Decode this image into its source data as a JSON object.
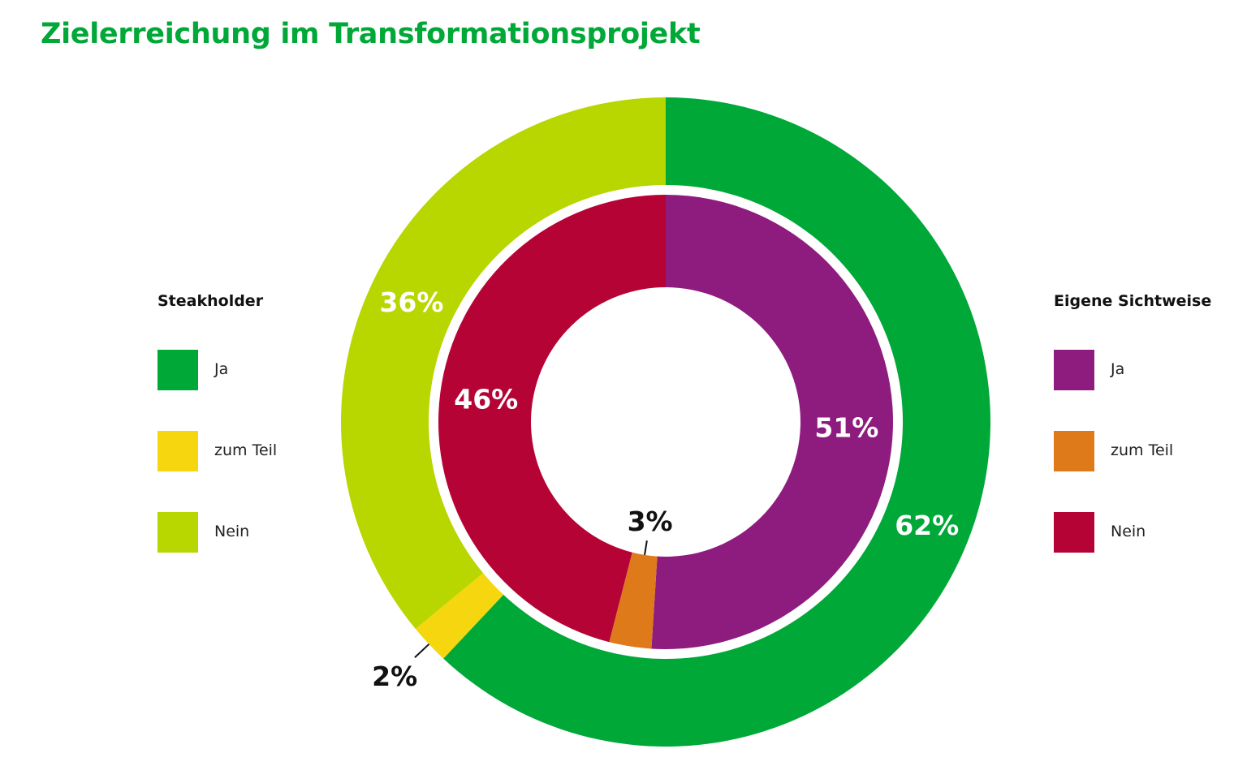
{
  "chart_data": {
    "type": "pie",
    "title": "Zielerreichung im Transformationsprojekt",
    "series": [
      {
        "name": "Steakholder",
        "ring": "outer",
        "categories": [
          "Ja",
          "zum Teil",
          "Nein"
        ],
        "values": [
          62,
          2,
          36
        ],
        "labels": [
          "62%",
          "2%",
          "36%"
        ],
        "colors": [
          "#00a838",
          "#f5d60f",
          "#b8d600"
        ]
      },
      {
        "name": "Eigene Sichtweise",
        "ring": "inner",
        "categories": [
          "Ja",
          "zum Teil",
          "Nein"
        ],
        "values": [
          51,
          3,
          46
        ],
        "labels": [
          "51%",
          "3%",
          "46%"
        ],
        "colors": [
          "#8e1c7f",
          "#df7a1a",
          "#b50335"
        ]
      }
    ],
    "legend_placement": [
      "left",
      "right"
    ]
  }
}
